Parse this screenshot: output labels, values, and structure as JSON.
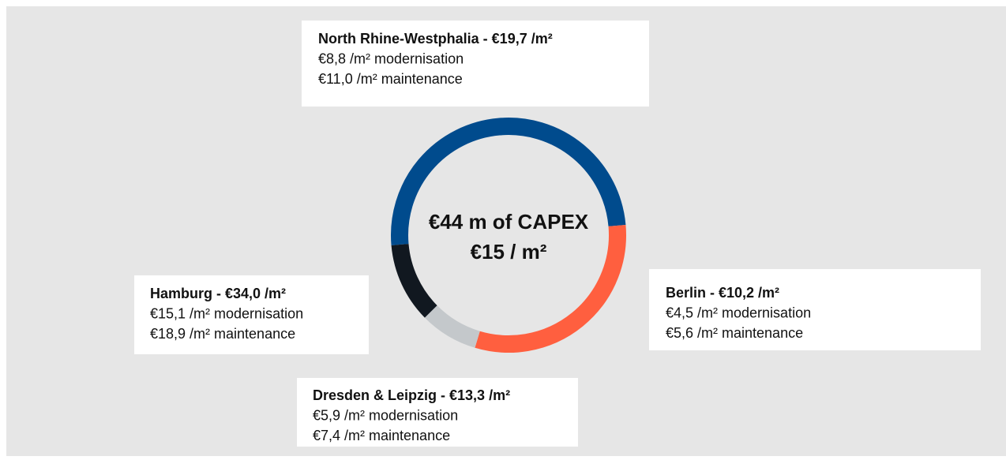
{
  "chart_data": {
    "type": "donut",
    "center_text": [
      "€44 m of CAPEX",
      "€15 / m²"
    ],
    "categories": [
      "North Rhine-Westphalia  - €19,7 /m²",
      "Berlin  - €10,2 /m²",
      "Dresden & Leipzig  - €13,3 /m²",
      "Hamburg  - €34,0 /m²"
    ],
    "details": [
      [
        "€8,8 /m² modernisation",
        "€11,0 /m² maintenance"
      ],
      [
        "€4,5 /m² modernisation",
        "€5,6 /m² maintenance"
      ],
      [
        "€5,9 /m² modernisation",
        "€7,4 /m² maintenance"
      ],
      [
        "€15,1 /m² modernisation",
        "€18,9 /m² maintenance"
      ]
    ],
    "values": [
      50,
      31,
      8,
      11
    ],
    "colors": [
      "#004b8d",
      "#ff5f3f",
      "#c4c8cb",
      "#111820"
    ],
    "start_angle": 265
  }
}
